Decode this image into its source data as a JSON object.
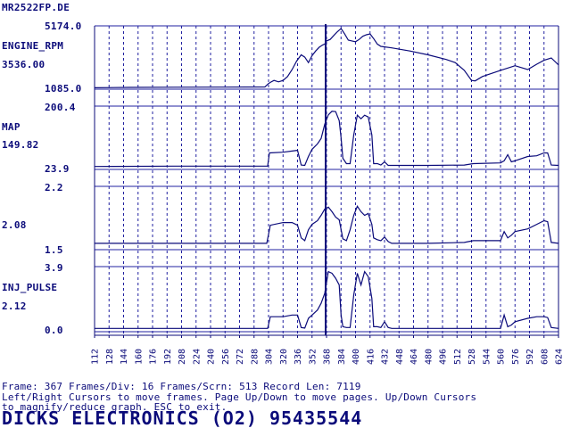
{
  "file_name": "MR2522FP.DE",
  "colors": {
    "ink": "#0b0b7a",
    "grid": "#2020a0",
    "background": "#ffffff"
  },
  "chart_data": {
    "type": "line",
    "x": {
      "min": 112,
      "max": 624,
      "ticks": [
        112,
        128,
        144,
        160,
        176,
        192,
        208,
        224,
        240,
        256,
        272,
        288,
        304,
        320,
        336,
        352,
        368,
        384,
        400,
        416,
        432,
        448,
        464,
        480,
        496,
        512,
        528,
        544,
        560,
        576,
        592,
        608,
        624
      ]
    },
    "cursor_frame": 367,
    "panels": [
      {
        "name": "ENGINE_RPM",
        "max_label": "5174.0",
        "mid_label": "3536.00",
        "min_label": "1085.0",
        "ylim": [
          1085.0,
          5174.0
        ],
        "x": [
          112,
          150,
          200,
          250,
          300,
          304,
          306,
          310,
          315,
          320,
          325,
          330,
          335,
          340,
          344,
          348,
          352,
          356,
          360,
          364,
          366,
          368,
          372,
          376,
          380,
          384,
          388,
          392,
          396,
          400,
          404,
          408,
          412,
          416,
          420,
          424,
          428,
          440,
          460,
          480,
          500,
          510,
          520,
          528,
          532,
          540,
          560,
          576,
          590,
          600,
          608,
          616,
          624
        ],
        "values": [
          1180,
          1200,
          1210,
          1220,
          1230,
          1450,
          1520,
          1650,
          1560,
          1650,
          1900,
          2350,
          2900,
          3300,
          3150,
          2800,
          3250,
          3550,
          3800,
          3950,
          4000,
          4200,
          4300,
          4550,
          4800,
          5000,
          4650,
          4250,
          4200,
          4150,
          4300,
          4500,
          4600,
          4650,
          4350,
          4000,
          3850,
          3750,
          3550,
          3300,
          3000,
          2800,
          2300,
          1650,
          1620,
          1900,
          2300,
          2600,
          2350,
          2700,
          2950,
          3100,
          2650
        ]
      },
      {
        "name": "MAP",
        "max_label": "200.4",
        "mid_label": "149.82",
        "min_label": "23.9",
        "ylim": [
          23.9,
          200.4
        ],
        "x": [
          112,
          200,
          250,
          300,
          303,
          305,
          320,
          330,
          336,
          340,
          344,
          348,
          352,
          358,
          362,
          366,
          370,
          374,
          378,
          382,
          384,
          386,
          390,
          394,
          398,
          402,
          406,
          410,
          414,
          418,
          420,
          424,
          428,
          432,
          436,
          440,
          480,
          520,
          530,
          560,
          564,
          568,
          572,
          576,
          590,
          600,
          608,
          612,
          616,
          624
        ],
        "values": [
          32,
          33,
          33,
          33,
          33,
          70,
          72,
          75,
          77,
          36,
          35,
          60,
          80,
          95,
          110,
          150,
          176,
          186,
          185,
          160,
          112,
          55,
          40,
          40,
          120,
          175,
          165,
          175,
          170,
          120,
          40,
          40,
          36,
          45,
          35,
          35,
          35,
          36,
          40,
          42,
          48,
          65,
          45,
          48,
          60,
          62,
          70,
          70,
          36,
          35
        ]
      },
      {
        "name": "",
        "max_label": "2.2",
        "mid_label": "2.08",
        "min_label": "1.5",
        "ylim": [
          1.5,
          2.2
        ],
        "x": [
          112,
          200,
          250,
          300,
          302,
          306,
          320,
          330,
          336,
          340,
          344,
          348,
          352,
          358,
          362,
          366,
          370,
          374,
          378,
          382,
          386,
          390,
          394,
          398,
          402,
          406,
          410,
          414,
          418,
          420,
          424,
          428,
          432,
          436,
          440,
          480,
          520,
          530,
          560,
          564,
          568,
          572,
          576,
          590,
          600,
          608,
          612,
          616,
          624
        ],
        "values": [
          1.57,
          1.57,
          1.57,
          1.57,
          1.57,
          1.77,
          1.8,
          1.8,
          1.77,
          1.63,
          1.6,
          1.72,
          1.78,
          1.82,
          1.88,
          1.95,
          1.97,
          1.92,
          1.86,
          1.83,
          1.62,
          1.6,
          1.72,
          1.88,
          1.98,
          1.92,
          1.88,
          1.9,
          1.78,
          1.63,
          1.61,
          1.6,
          1.64,
          1.59,
          1.57,
          1.57,
          1.58,
          1.6,
          1.6,
          1.7,
          1.63,
          1.66,
          1.7,
          1.73,
          1.78,
          1.82,
          1.81,
          1.58,
          1.57
        ]
      },
      {
        "name": "INJ_PULSE",
        "max_label": "3.9",
        "mid_label": "2.12",
        "min_label": "0.0",
        "ylim": [
          0.0,
          3.9
        ],
        "x": [
          112,
          200,
          250,
          300,
          303,
          306,
          320,
          330,
          336,
          340,
          344,
          348,
          352,
          358,
          362,
          366,
          370,
          374,
          378,
          382,
          384,
          386,
          390,
          394,
          398,
          402,
          406,
          410,
          414,
          418,
          420,
          424,
          428,
          432,
          436,
          440,
          480,
          520,
          560,
          564,
          568,
          572,
          576,
          590,
          600,
          608,
          612,
          616,
          624
        ],
        "values": [
          0.2,
          0.2,
          0.2,
          0.2,
          0.2,
          0.9,
          0.9,
          1.0,
          1.0,
          0.25,
          0.22,
          0.8,
          1.0,
          1.3,
          1.7,
          2.3,
          3.6,
          3.5,
          3.2,
          2.8,
          1.0,
          0.3,
          0.25,
          0.25,
          2.2,
          3.5,
          2.8,
          3.6,
          3.3,
          2.0,
          0.3,
          0.3,
          0.25,
          0.6,
          0.25,
          0.2,
          0.2,
          0.2,
          0.2,
          1.0,
          0.3,
          0.4,
          0.6,
          0.8,
          0.9,
          0.9,
          0.85,
          0.25,
          0.2
        ]
      }
    ]
  },
  "status": {
    "line1": "Frame: 367  Frames/Div: 16  Frames/Scrn: 513  Record Len: 7119",
    "line2": "Left/Right Cursors to move frames. Page Up/Down to move pages. Up/Down Cursors",
    "line3": "to magnify/reduce graph. ESC to exit."
  },
  "brand": "DICKS ELECTRONICS (O2) 95435544"
}
